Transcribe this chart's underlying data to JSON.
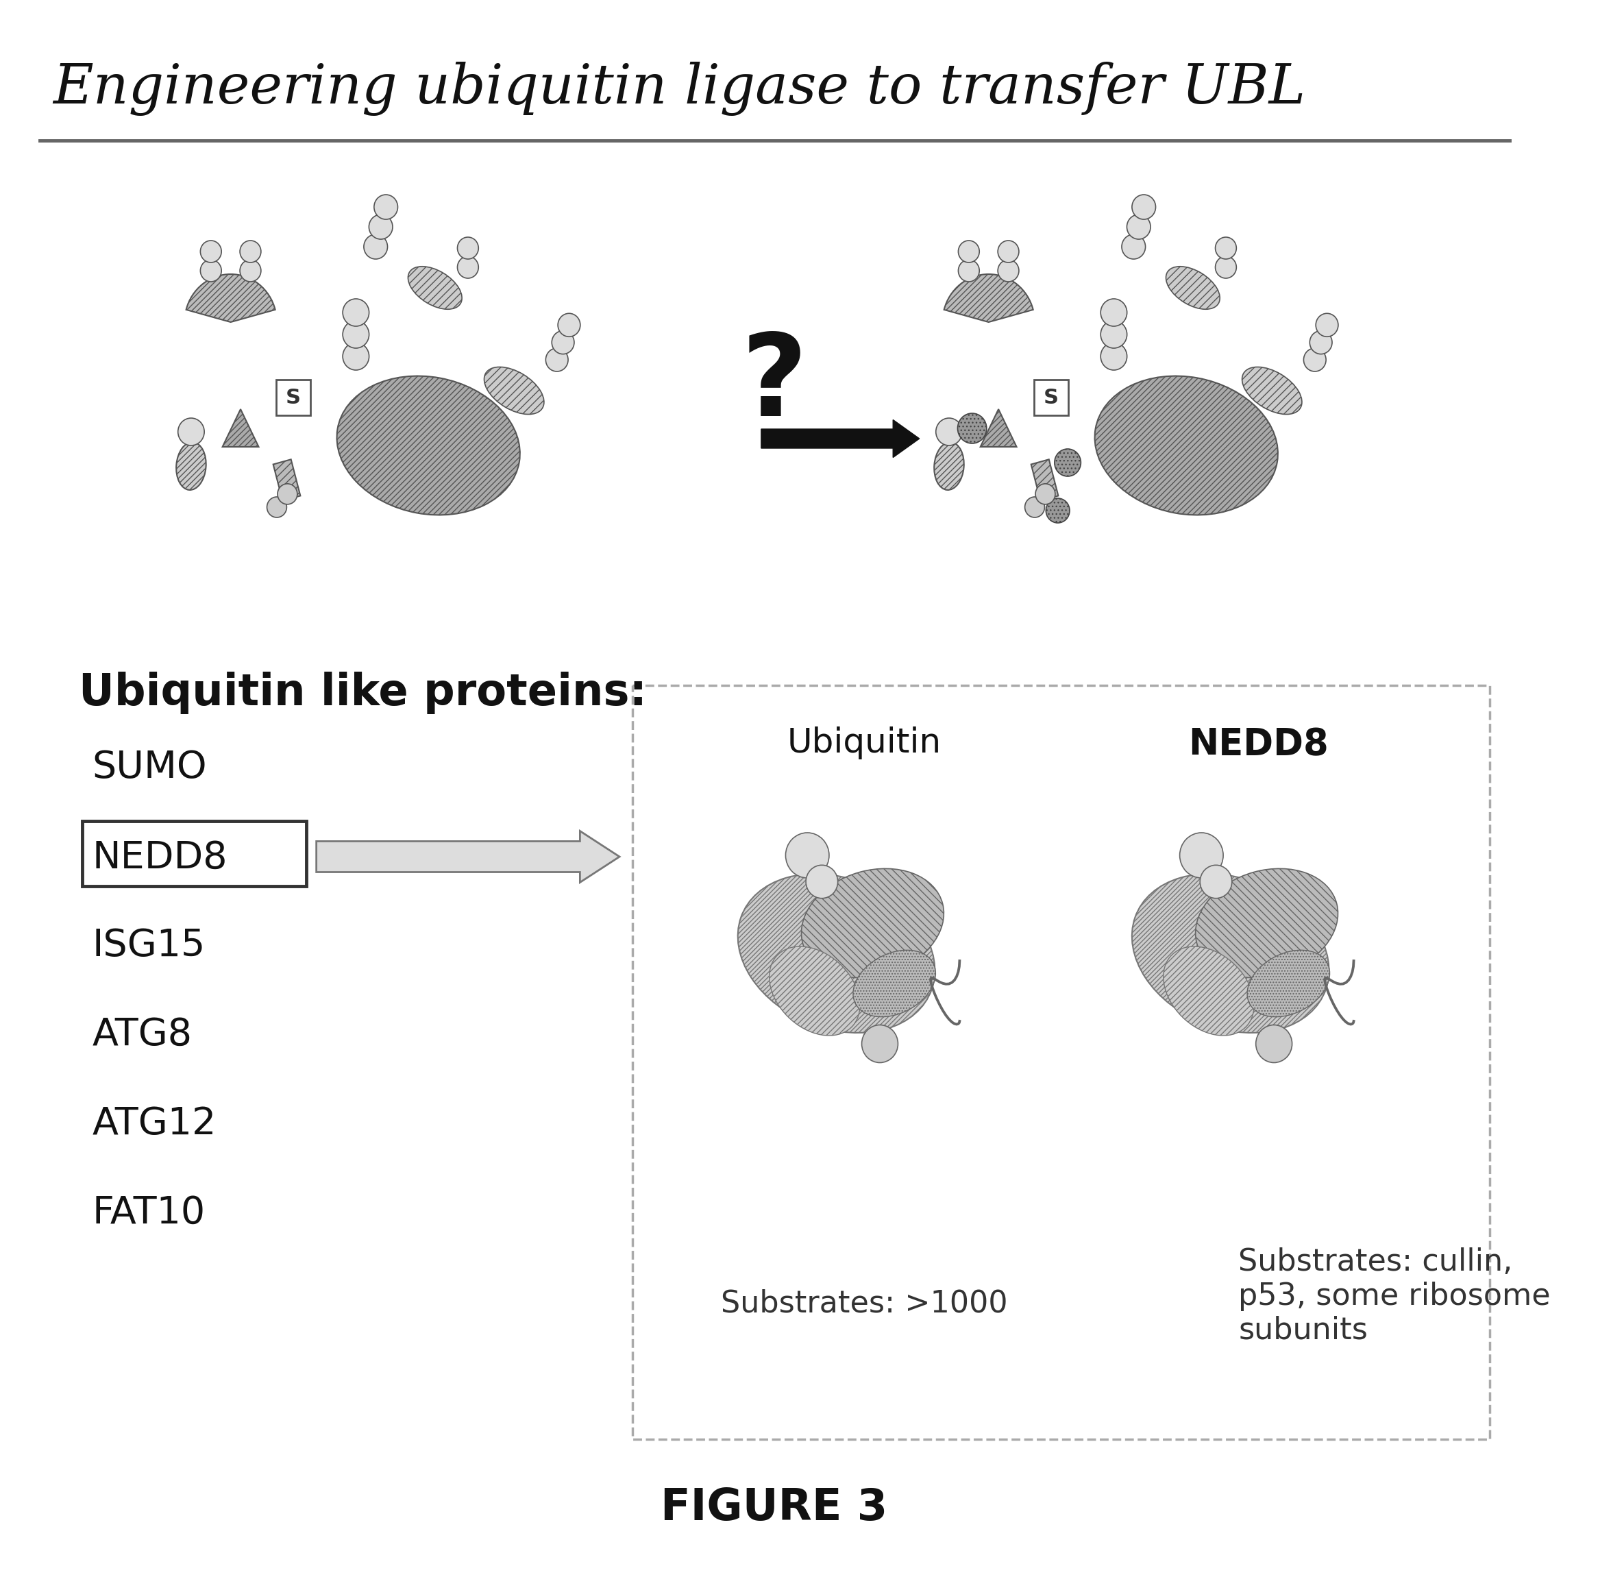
{
  "title": "Engineering ubiquitin ligase to transfer UBL",
  "figure_label": "FIGURE 3",
  "bg_color": "#ffffff",
  "title_fontsize": 58,
  "title_color": "#111111",
  "ubl_header": "Ubiquitin like proteins:",
  "ubl_list": [
    "SUMO",
    "NEDD8",
    "ISG15",
    "ATG8",
    "ATG12",
    "FAT10"
  ],
  "nedd8_boxed": "NEDD8",
  "right_panel_proteins": [
    "Ubiquitin",
    "NEDD8"
  ],
  "ubiquitin_substrates": "Substrates: >1000",
  "nedd8_substrates": "Substrates: cullin,\np53, some ribosome\nsubunits",
  "hatch_color": "#888888",
  "line_color": "#555555"
}
